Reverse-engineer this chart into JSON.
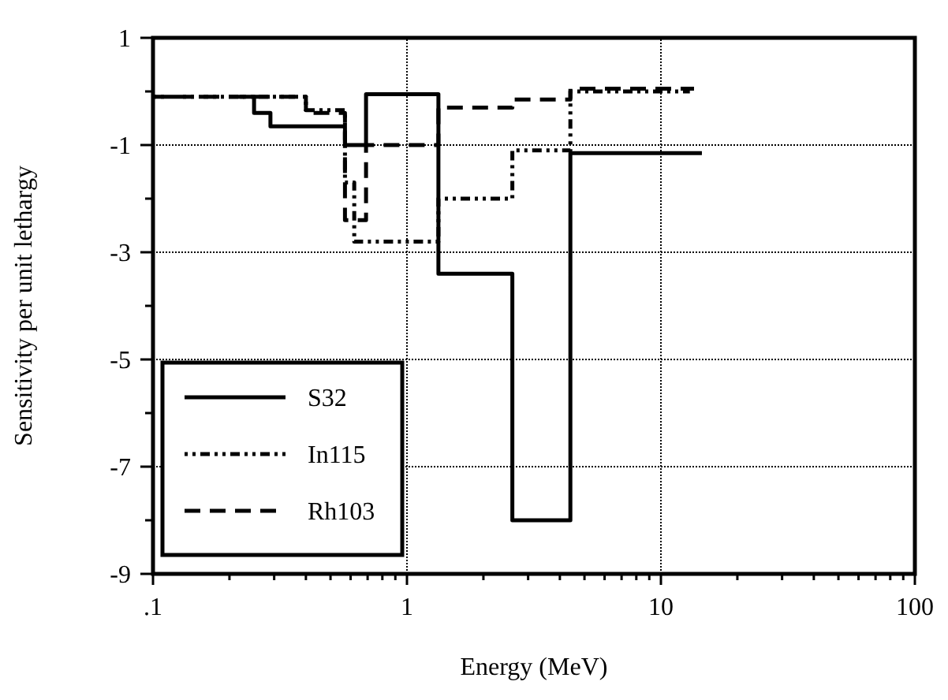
{
  "chart_data": {
    "type": "step",
    "xlabel": "Energy (MeV)",
    "ylabel": "Sensitivity per unit lethargy",
    "log": "x",
    "grid": true,
    "legend": "bottom left",
    "xlim": [
      0.1,
      100
    ],
    "ylim": [
      -9,
      1
    ],
    "xticks": [
      {
        "value": 0.1,
        "label": ".1"
      },
      {
        "value": 0.2,
        "label": null
      },
      {
        "value": 0.3,
        "label": null
      },
      {
        "value": 0.4,
        "label": null
      },
      {
        "value": 0.5,
        "label": null
      },
      {
        "value": 0.6,
        "label": null
      },
      {
        "value": 0.7,
        "label": null
      },
      {
        "value": 0.8,
        "label": null
      },
      {
        "value": 0.9,
        "label": null
      },
      1,
      {
        "value": 2,
        "label": null
      },
      {
        "value": 3,
        "label": null
      },
      {
        "value": 4,
        "label": null
      },
      {
        "value": 5,
        "label": null
      },
      {
        "value": 6,
        "label": null
      },
      {
        "value": 7,
        "label": null
      },
      {
        "value": 8,
        "label": null
      },
      {
        "value": 9,
        "label": null
      },
      10,
      {
        "value": 20,
        "label": null
      },
      {
        "value": 30,
        "label": null
      },
      {
        "value": 40,
        "label": null
      },
      {
        "value": 50,
        "label": null
      },
      {
        "value": 60,
        "label": null
      },
      {
        "value": 70,
        "label": null
      },
      {
        "value": 80,
        "label": null
      },
      {
        "value": 90,
        "label": null
      },
      100
    ],
    "yticks": [
      -9,
      {
        "value": -8,
        "label": null
      },
      -7,
      {
        "value": -6,
        "label": null
      },
      -5,
      {
        "value": -4,
        "label": null
      },
      -3,
      {
        "value": -2,
        "label": null
      },
      -1,
      {
        "value": 0,
        "label": null
      },
      1
    ],
    "series": [
      {
        "name": "S32",
        "color": "#000000",
        "line_style": "solid",
        "x": [
          0.22,
          0.25,
          0.29,
          0.57,
          0.69,
          1.33,
          2.6,
          4.4,
          14.5
        ],
        "values": [
          -0.1,
          -0.4,
          -0.65,
          -1.0,
          -0.05,
          -3.4,
          -8.0,
          -1.15,
          -1.15
        ]
      },
      {
        "name": "In115",
        "color": "#000000",
        "line_style": "dashdot",
        "x": [
          0.1,
          0.4,
          0.57,
          0.62,
          1.33,
          2.6,
          4.4,
          13
        ],
        "values": [
          -0.1,
          -0.35,
          -1.7,
          -2.8,
          -2.0,
          -1.1,
          0.0,
          0.0
        ]
      },
      {
        "name": "Rh103",
        "color": "#000000",
        "line_style": "dashed",
        "x": [
          0.1,
          0.4,
          0.57,
          0.69,
          1.33,
          2.6,
          4.4,
          13.5
        ],
        "values": [
          -0.1,
          -0.4,
          -2.4,
          -1.0,
          -0.3,
          -0.15,
          0.05,
          0.05
        ]
      }
    ]
  }
}
